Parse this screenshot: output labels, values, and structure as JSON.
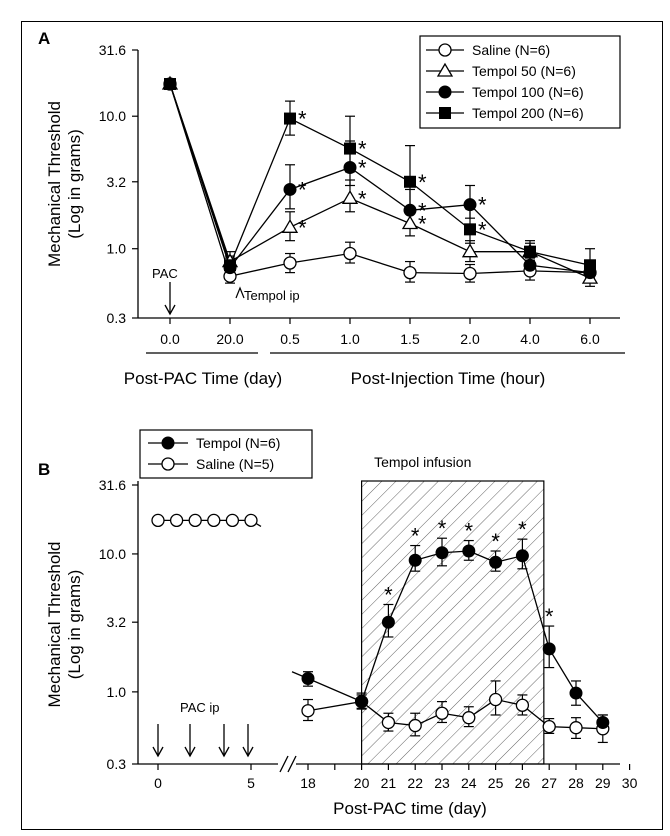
{
  "chart_data": [
    {
      "panel": "A",
      "type": "line",
      "ylabel": [
        "Mechanical Threshold",
        "(Log in grams)"
      ],
      "yscale": "log",
      "yticks": [
        0.3,
        1.0,
        3.2,
        10.0,
        31.6
      ],
      "ytick_labels": [
        "0.3",
        "1.0",
        "3.2",
        "10.0",
        "31.6"
      ],
      "ylim": [
        0.3,
        31.6
      ],
      "categories": [
        "0.0",
        "20.0",
        "0.5",
        "1.0",
        "1.5",
        "2.0",
        "4.0",
        "6.0"
      ],
      "xlabel_left": "Post-PAC Time (day)",
      "xlabel_right": "Post-Injection Time (hour)",
      "annotations": [
        {
          "text": "PAC",
          "at": "0.0"
        },
        {
          "text": "Tempol ip",
          "at": "20.0"
        }
      ],
      "legend_position": "top-right",
      "series": [
        {
          "name": "Saline (N=6)",
          "marker": "open-circle",
          "values": [
            17.5,
            0.62,
            0.78,
            0.92,
            0.66,
            0.65,
            0.68,
            0.66
          ],
          "err_hi": [
            18.5,
            0.72,
            0.92,
            1.12,
            0.8,
            0.76,
            0.85,
            0.78
          ],
          "err_lo": [
            16.5,
            0.55,
            0.66,
            0.78,
            0.56,
            0.56,
            0.58,
            0.57
          ]
        },
        {
          "name": "Tempol 50 (N=6)",
          "marker": "open-triangle",
          "values": [
            17.5,
            0.8,
            1.45,
            2.4,
            1.55,
            0.95,
            0.95,
            0.6
          ],
          "err_hi": [
            18.5,
            0.95,
            1.9,
            3.3,
            1.95,
            1.15,
            1.15,
            0.72
          ],
          "err_lo": [
            16.5,
            0.68,
            1.15,
            1.9,
            1.25,
            0.8,
            0.8,
            0.52
          ]
        },
        {
          "name": "Tempol 100 (N=6)",
          "marker": "filled-circle",
          "values": [
            17.5,
            0.72,
            2.8,
            4.1,
            1.95,
            2.15,
            0.75,
            0.66
          ],
          "err_hi": [
            18.5,
            0.85,
            4.3,
            6.5,
            2.8,
            3.0,
            0.9,
            0.78
          ],
          "err_lo": [
            16.5,
            0.62,
            2.0,
            3.0,
            1.5,
            1.7,
            0.64,
            0.57
          ]
        },
        {
          "name": "Tempol 200 (N=6)",
          "marker": "filled-square",
          "values": [
            17.5,
            0.75,
            9.6,
            5.7,
            3.2,
            1.4,
            0.95,
            0.75
          ],
          "err_hi": [
            18.5,
            0.88,
            13.0,
            10.0,
            6.0,
            2.0,
            1.1,
            1.0
          ],
          "err_lo": [
            16.5,
            0.64,
            7.2,
            3.8,
            2.0,
            1.1,
            0.82,
            0.6
          ]
        }
      ],
      "stars": [
        {
          "series": 3,
          "x": "0.5"
        },
        {
          "series": 2,
          "x": "0.5"
        },
        {
          "series": 1,
          "x": "0.5"
        },
        {
          "series": 3,
          "x": "1.0"
        },
        {
          "series": 2,
          "x": "1.0"
        },
        {
          "series": 1,
          "x": "1.0"
        },
        {
          "series": 3,
          "x": "1.5"
        },
        {
          "series": 2,
          "x": "1.5"
        },
        {
          "series": 1,
          "x": "1.5"
        },
        {
          "series": 2,
          "x": "2.0"
        },
        {
          "series": 3,
          "x": "2.0"
        }
      ],
      "star_text": "*"
    },
    {
      "panel": "B",
      "type": "line",
      "ylabel": [
        "Mechanical Threshold",
        "(Log in grams)"
      ],
      "yscale": "log",
      "yticks": [
        0.3,
        1.0,
        3.2,
        10.0,
        31.6
      ],
      "ytick_labels": [
        "0.3",
        "1.0",
        "3.2",
        "10.0",
        "31.6"
      ],
      "ylim": [
        0.3,
        31.6
      ],
      "xlabel": "Post-PAC time (day)",
      "xticks_left": [
        0,
        5
      ],
      "xticks_right": [
        18,
        19,
        20,
        21,
        22,
        23,
        24,
        25,
        26,
        27,
        28,
        29,
        30
      ],
      "xtick_labels_right": [
        "18",
        "20",
        "21",
        "22",
        "23",
        "24",
        "25",
        "26",
        "27",
        "28",
        "29",
        "30"
      ],
      "xtick_label_positions_right": [
        18,
        20,
        21,
        22,
        23,
        24,
        25,
        26,
        27,
        28,
        29,
        30
      ],
      "axis_break_between": [
        6,
        17.5
      ],
      "shaded_region": {
        "label": "Tempol infusion",
        "x_start": 20,
        "x_end": 26.8
      },
      "annotations": [
        {
          "text": "PAC ip"
        }
      ],
      "pac_arrows_x": [
        0,
        2,
        4,
        5
      ],
      "legend_position": "top-left",
      "series": [
        {
          "name": "Tempol (N=6)",
          "marker": "filled-circle",
          "x": [
            18,
            20,
            21,
            22,
            23,
            24,
            25,
            26,
            27,
            28,
            29
          ],
          "values": [
            1.25,
            0.85,
            3.2,
            9.0,
            10.2,
            10.5,
            8.7,
            9.7,
            2.05,
            0.98,
            0.6
          ],
          "err_hi": [
            1.4,
            0.98,
            4.3,
            11.5,
            13.0,
            12.5,
            10.5,
            12.8,
            3.0,
            1.2,
            0.68
          ],
          "err_lo": [
            1.1,
            0.75,
            2.5,
            7.5,
            8.2,
            9.0,
            7.5,
            7.8,
            1.5,
            0.8,
            0.53
          ]
        },
        {
          "name": "Saline (N=5)",
          "marker": "open-circle",
          "x": [
            0,
            1,
            2,
            3,
            4,
            5,
            18,
            20,
            21,
            22,
            23,
            24,
            25,
            26,
            27,
            28,
            29
          ],
          "values": [
            17.5,
            17.5,
            17.5,
            17.5,
            17.5,
            17.5,
            0.73,
            0.85,
            0.6,
            0.57,
            0.7,
            0.65,
            0.88,
            0.8,
            0.56,
            0.55,
            0.54
          ],
          "err_hi": [
            null,
            null,
            null,
            null,
            null,
            null,
            0.88,
            0.95,
            0.7,
            0.7,
            0.85,
            0.78,
            1.2,
            0.95,
            0.64,
            0.65,
            0.68
          ],
          "err_lo": [
            null,
            null,
            null,
            null,
            null,
            null,
            0.62,
            0.76,
            0.52,
            0.48,
            0.6,
            0.56,
            0.68,
            0.68,
            0.5,
            0.46,
            0.43
          ]
        }
      ],
      "stars": [
        {
          "x": 21
        },
        {
          "x": 22
        },
        {
          "x": 23
        },
        {
          "x": 24
        },
        {
          "x": 25
        },
        {
          "x": 26
        },
        {
          "x": 27
        }
      ],
      "star_text": "*"
    }
  ]
}
